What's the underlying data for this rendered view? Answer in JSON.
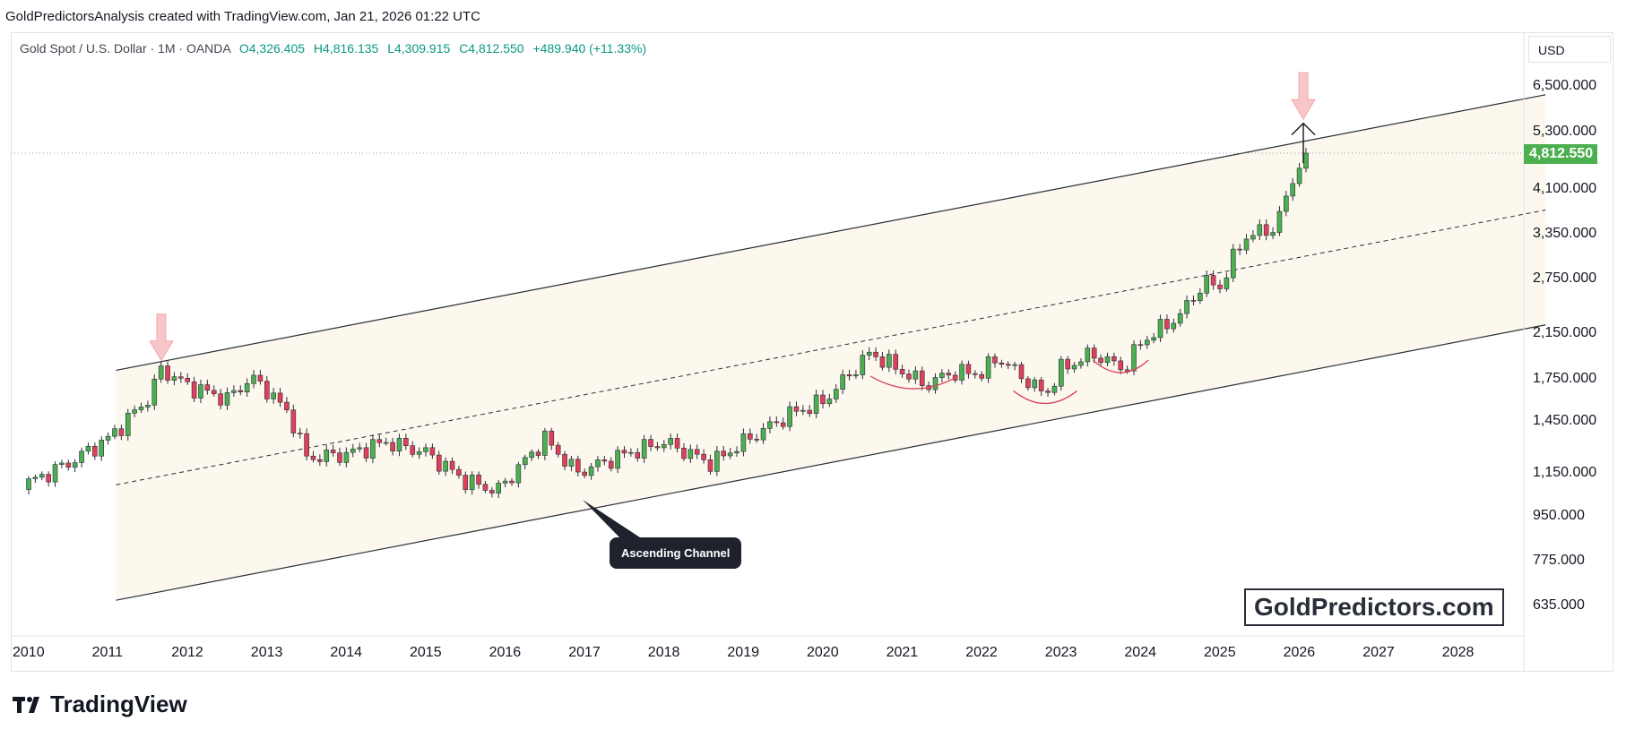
{
  "header": {
    "attribution": "GoldPredictorsAnalysis created with TradingView.com, Jan 21, 2026 01:22 UTC"
  },
  "legend": {
    "symbol": "Gold Spot / U.S. Dollar · 1M · OANDA",
    "open": "O4,326.405",
    "high": "H4,816.135",
    "low": "L4,309.915",
    "close": "C4,812.550",
    "change": "+489.940 (+11.33%)"
  },
  "currency_button": "USD",
  "last_price": "4,812.550",
  "watermark": "GoldPredictors.com",
  "callout": "Ascending Channel",
  "brand": "TradingView",
  "colors": {
    "bull": "#4caf50",
    "bear": "#e0405a",
    "channel_fill": "#fdf8ee",
    "arrow_pink": "#f7c6c8",
    "price_tag": "#4caf50"
  },
  "chart_data": {
    "type": "candlestick",
    "scale": "log",
    "interval": "1M",
    "y_ticks": [
      "635.000",
      "775.000",
      "950.000",
      "1,150.000",
      "1,450.000",
      "1,750.000",
      "2,150.000",
      "2,750.000",
      "3,350.000",
      "4,100.000",
      "5,300.000",
      "6,500.000"
    ],
    "x_ticks": [
      "2010",
      "2011",
      "2012",
      "2013",
      "2014",
      "2015",
      "2016",
      "2017",
      "2018",
      "2019",
      "2020",
      "2021",
      "2022",
      "2023",
      "2024",
      "2025",
      "2026",
      "2027",
      "2028"
    ],
    "ylim": [
      560,
      8000
    ],
    "xlim": [
      2010.0,
      2029.5
    ],
    "last_price": 4812.55,
    "grid": false,
    "monthly_closes_keypoints": [
      {
        "date": 2010.0,
        "close": 1100
      },
      {
        "date": 2010.5,
        "close": 1200
      },
      {
        "date": 2011.0,
        "close": 1340
      },
      {
        "date": 2011.5,
        "close": 1600
      },
      {
        "date": 2011.67,
        "close": 1830
      },
      {
        "date": 2012.0,
        "close": 1700
      },
      {
        "date": 2012.5,
        "close": 1600
      },
      {
        "date": 2012.8,
        "close": 1760
      },
      {
        "date": 2013.0,
        "close": 1670
      },
      {
        "date": 2013.3,
        "close": 1480
      },
      {
        "date": 2013.5,
        "close": 1230
      },
      {
        "date": 2014.0,
        "close": 1250
      },
      {
        "date": 2014.5,
        "close": 1320
      },
      {
        "date": 2015.0,
        "close": 1260
      },
      {
        "date": 2015.5,
        "close": 1110
      },
      {
        "date": 2015.9,
        "close": 1060
      },
      {
        "date": 2016.5,
        "close": 1340
      },
      {
        "date": 2016.9,
        "close": 1150
      },
      {
        "date": 2017.5,
        "close": 1250
      },
      {
        "date": 2018.0,
        "close": 1320
      },
      {
        "date": 2018.6,
        "close": 1200
      },
      {
        "date": 2019.0,
        "close": 1320
      },
      {
        "date": 2019.6,
        "close": 1500
      },
      {
        "date": 2020.0,
        "close": 1580
      },
      {
        "date": 2020.6,
        "close": 1970
      },
      {
        "date": 2021.0,
        "close": 1810
      },
      {
        "date": 2021.3,
        "close": 1700
      },
      {
        "date": 2021.6,
        "close": 1800
      },
      {
        "date": 2022.0,
        "close": 1800
      },
      {
        "date": 2022.2,
        "close": 1930
      },
      {
        "date": 2022.8,
        "close": 1630
      },
      {
        "date": 2023.0,
        "close": 1830
      },
      {
        "date": 2023.4,
        "close": 1960
      },
      {
        "date": 2023.8,
        "close": 1830
      },
      {
        "date": 2024.0,
        "close": 2060
      },
      {
        "date": 2024.5,
        "close": 2330
      },
      {
        "date": 2024.8,
        "close": 2700
      },
      {
        "date": 2025.0,
        "close": 2650
      },
      {
        "date": 2025.3,
        "close": 3300
      },
      {
        "date": 2025.7,
        "close": 3450
      },
      {
        "date": 2025.9,
        "close": 4200
      },
      {
        "date": 2026.05,
        "close": 4812.55
      }
    ],
    "annotations": [
      {
        "type": "channel",
        "label": "Ascending Channel",
        "upper": [
          [
            2011.1,
            1820
          ],
          [
            2029.1,
            6250
          ]
        ],
        "lower": [
          [
            2011.1,
            650
          ],
          [
            2029.1,
            2230
          ]
        ],
        "median": [
          [
            2011.1,
            1090
          ],
          [
            2029.1,
            3730
          ]
        ]
      },
      {
        "type": "arrow-down",
        "date": 2011.67,
        "price": 1900
      },
      {
        "type": "arrow-down",
        "date": 2026.05,
        "price": 5600
      },
      {
        "type": "arrow-up",
        "date": 2026.05,
        "from": 4600,
        "to": 5500
      },
      {
        "type": "arc",
        "from": 2020.6,
        "to": 2021.7,
        "price": 1730
      },
      {
        "type": "arc",
        "from": 2022.4,
        "to": 2023.2,
        "price": 1620
      },
      {
        "type": "arc",
        "from": 2023.4,
        "to": 2024.1,
        "price": 1860
      }
    ]
  }
}
